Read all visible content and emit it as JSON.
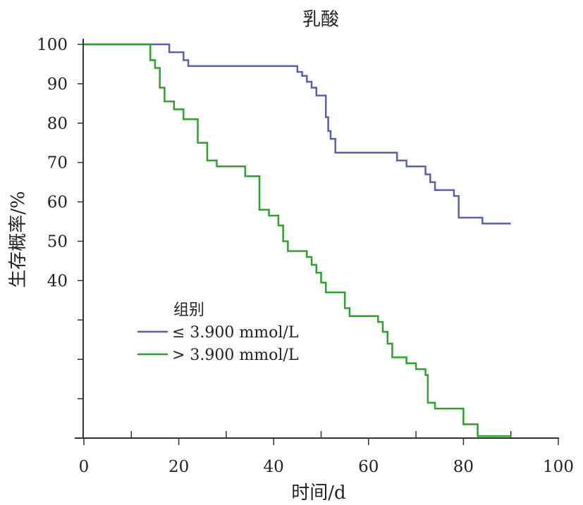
{
  "chart_data": {
    "type": "line",
    "step": true,
    "title": "乳酸",
    "xlabel": "时间/d",
    "ylabel": "生存概率/%",
    "xlim": [
      0,
      100
    ],
    "ylim": [
      0,
      100
    ],
    "xticks": [
      "0",
      "20",
      "40",
      "60",
      "80",
      "100"
    ],
    "yticks_labeled": [
      "100",
      "90",
      "80",
      "70",
      "60",
      "50",
      "40"
    ],
    "legend": {
      "title": "组别",
      "placement": "lower-left"
    },
    "series": [
      {
        "name": "≤ 3.900 mmol/L",
        "color": "#5b5fb0",
        "x": [
          0,
          18,
          21,
          22,
          45,
          46,
          47,
          48,
          49,
          51,
          51.5,
          52,
          53,
          54,
          66,
          67,
          68,
          72,
          73,
          74,
          78,
          79,
          84,
          90
        ],
        "y": [
          100,
          98,
          96,
          94.5,
          93,
          92,
          90.5,
          89,
          87,
          81.5,
          78,
          76,
          72.5,
          72.5,
          70.5,
          70.5,
          69,
          67,
          65,
          63,
          61.5,
          56,
          54.5,
          54.5
        ]
      },
      {
        "name": "> 3.900 mmol/L",
        "color": "#2ea02e",
        "x": [
          0,
          14,
          15,
          16,
          17,
          19,
          21,
          24,
          26,
          28,
          34,
          37,
          39,
          41,
          42,
          43,
          47,
          48,
          49,
          50,
          51,
          55,
          56,
          62,
          63,
          64,
          65,
          68,
          70,
          72,
          72.5,
          74,
          80,
          83,
          90
        ],
        "y": [
          100,
          96,
          94,
          89,
          85.5,
          83.5,
          81,
          75,
          70.5,
          69,
          66.5,
          58,
          56.5,
          54,
          50,
          47.5,
          46,
          44,
          42,
          39.5,
          37,
          33,
          31,
          29.5,
          27,
          24,
          20.5,
          19,
          17.5,
          16,
          9,
          7.5,
          3.5,
          0.5,
          0.5
        ]
      }
    ]
  }
}
